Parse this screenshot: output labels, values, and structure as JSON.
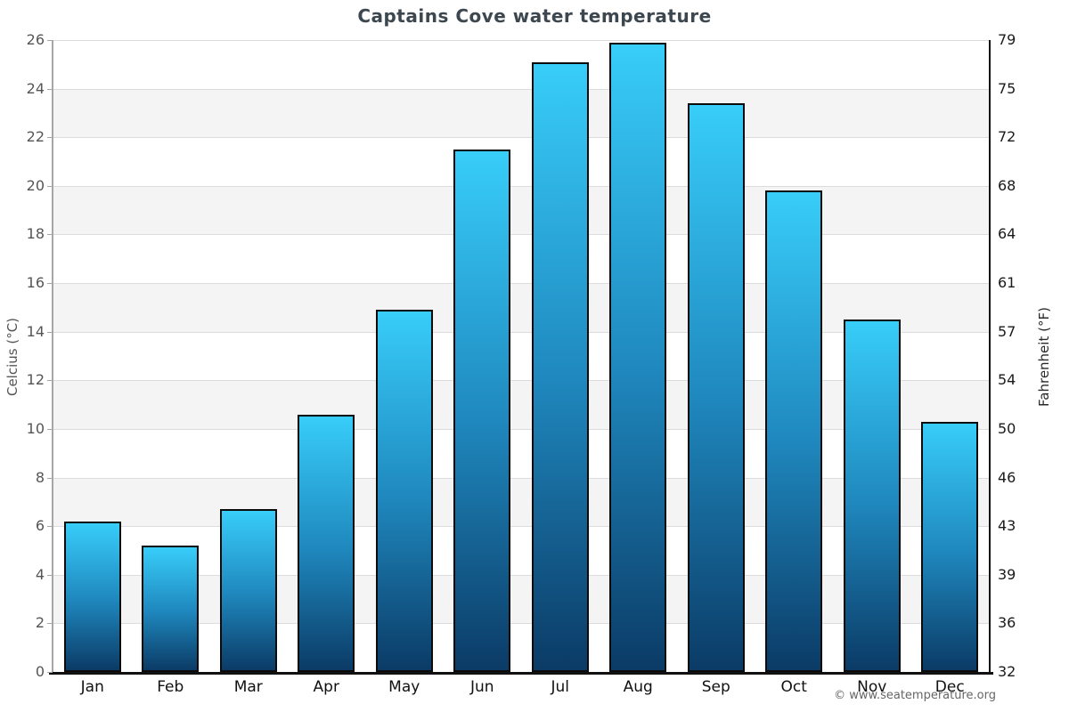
{
  "chart_data": {
    "type": "bar",
    "title": "Captains Cove water temperature",
    "categories": [
      "Jan",
      "Feb",
      "Mar",
      "Apr",
      "May",
      "Jun",
      "Jul",
      "Aug",
      "Sep",
      "Oct",
      "Nov",
      "Dec"
    ],
    "values": [
      6.2,
      5.2,
      6.7,
      10.6,
      14.9,
      21.5,
      25.1,
      25.9,
      23.4,
      19.8,
      14.5,
      10.3
    ],
    "value_unit": "°C",
    "xlabel": "",
    "ylabel_left": "Celcius (°C)",
    "ylabel_right": "Fahrenheit (°F)",
    "ylim": [
      0,
      26
    ],
    "celsius_ticks": [
      0,
      2,
      4,
      6,
      8,
      10,
      12,
      14,
      16,
      18,
      20,
      22,
      24,
      26
    ],
    "fahrenheit_ticks": [
      32,
      36,
      39,
      43,
      46,
      50,
      54,
      57,
      61,
      64,
      68,
      72,
      75,
      79
    ],
    "grid": "horizontal gridlines with alternating shaded bands every 2°C",
    "legend_position": "none",
    "colors": {
      "bar_gradient_top": "#38cdf9",
      "bar_gradient_mid": "#1f88be",
      "bar_gradient_bottom": "#0b3b66",
      "bar_border": "#0b0b0b",
      "band_fill": "#f4f4f4",
      "gridline": "#dcdcdc",
      "title_text": "#3d474f",
      "left_axis_text": "#555555",
      "right_axis_text": "#1a1a1a"
    }
  },
  "footer": {
    "copyright": "© www.seatemperature.org"
  }
}
